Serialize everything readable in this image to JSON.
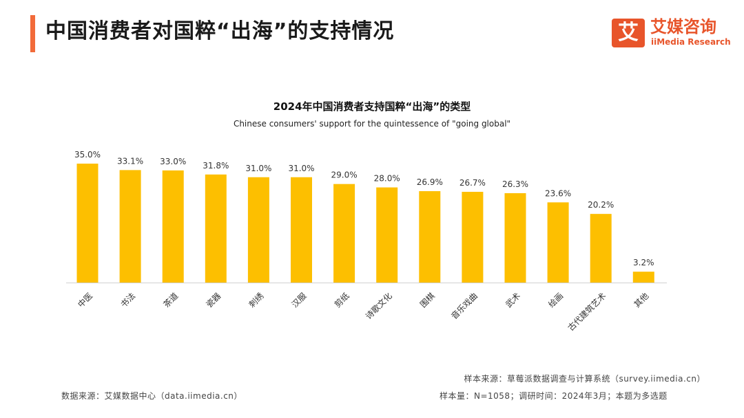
{
  "header": {
    "title": "中国消费者对国粹“出海”的支持情况",
    "logo_cn": "艾媒咨询",
    "logo_en": "iiMedia Research",
    "logo_mark": "艾"
  },
  "colors": {
    "accent": "#f26b3a",
    "brand": "#e8552b",
    "bar": "#fdbf00"
  },
  "chart_data": {
    "type": "bar",
    "title": "2024年中国消费者支持国粹“出海”的类型",
    "subtitle": "Chinese consumers' support for the quintessence of \"going global\"",
    "categories": [
      "中医",
      "书法",
      "茶道",
      "瓷器",
      "刺绣",
      "汉服",
      "剪纸",
      "诗歌文化",
      "围棋",
      "音乐戏曲",
      "武术",
      "绘画",
      "古代建筑艺术",
      "其他"
    ],
    "values": [
      35.0,
      33.1,
      33.0,
      31.8,
      31.0,
      31.0,
      29.0,
      28.0,
      26.9,
      26.7,
      26.3,
      23.6,
      20.2,
      3.2
    ],
    "data_labels": [
      "35.0%",
      "33.1%",
      "33.0%",
      "31.8%",
      "31.0%",
      "31.0%",
      "29.0%",
      "28.0%",
      "26.9%",
      "26.7%",
      "26.3%",
      "23.6%",
      "20.2%",
      "3.2%"
    ],
    "unit": "%",
    "ylim": [
      0,
      35
    ],
    "grid": false,
    "legend": "none"
  },
  "footer": {
    "data_source": "数据来源：艾媒数据中心（data.iimedia.cn）",
    "sample_source": "样本来源：草莓派数据调查与计算系统（survey.iimedia.cn）",
    "sample_info": "样本量：N=1058；调研时间：2024年3月；本题为多选题"
  }
}
